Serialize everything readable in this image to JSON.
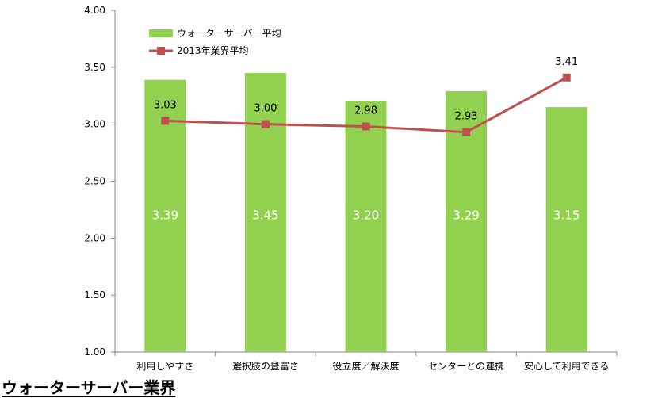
{
  "page": {
    "footer_title": "ウォーターサーバー業界"
  },
  "chart_data": {
    "type": "bar",
    "categories": [
      "利用しやすさ",
      "選択肢の豊富さ",
      "役立度／解決度",
      "センターとの連携",
      "安心して利用できる"
    ],
    "ylim": [
      1.0,
      4.0
    ],
    "yticks": [
      "1.00",
      "1.50",
      "2.00",
      "2.50",
      "3.00",
      "3.50",
      "4.00"
    ],
    "grid": false,
    "legend_position": "top-left",
    "series": [
      {
        "name": "ウォーターサーバー平均",
        "type": "bar",
        "color": "#92d050",
        "values": [
          3.39,
          3.45,
          3.2,
          3.29,
          3.15
        ],
        "labels": [
          "3.39",
          "3.45",
          "3.20",
          "3.29",
          "3.15"
        ]
      },
      {
        "name": "2013年業界平均",
        "type": "line",
        "color": "#c0504d",
        "values": [
          3.03,
          3.0,
          2.98,
          2.93,
          3.41
        ],
        "labels": [
          "3.03",
          "3.00",
          "2.98",
          "2.93",
          "3.41"
        ]
      }
    ]
  }
}
